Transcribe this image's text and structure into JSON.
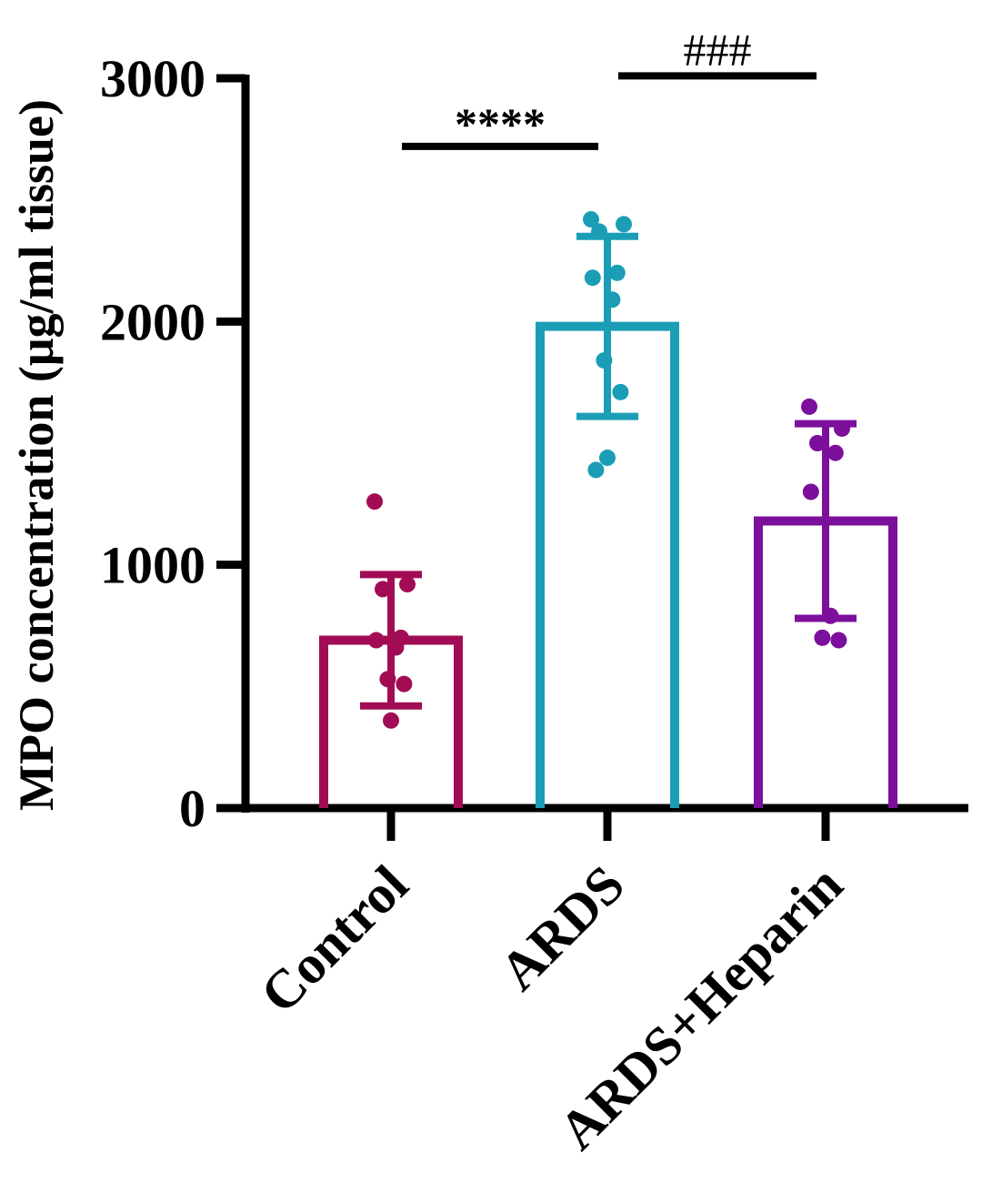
{
  "chart_data": {
    "type": "bar",
    "title": "",
    "xlabel": "",
    "ylabel": "MPO concentration (μg/ml tissue)",
    "ylim": [
      0,
      3000
    ],
    "yticks": [
      "0",
      "1000",
      "2000",
      "3000"
    ],
    "ytick_values": [
      0,
      1000,
      2000,
      3000
    ],
    "categories": [
      "Control",
      "ARDS",
      "ARDS+Heparin"
    ],
    "values": [
      690,
      1980,
      1180
    ],
    "sd": [
      270,
      370,
      400
    ],
    "colors": [
      "#a10c55",
      "#1b9eb5",
      "#7c0f9c"
    ],
    "points": [
      [
        1260,
        920,
        900,
        700,
        690,
        660,
        530,
        510,
        360
      ],
      [
        2420,
        2400,
        2370,
        2200,
        2180,
        2090,
        1840,
        1710,
        1440,
        1390
      ],
      [
        1650,
        1560,
        1500,
        1460,
        1300,
        790,
        700,
        690
      ]
    ],
    "significance": [
      {
        "label": "****",
        "from": "Control",
        "to": "ARDS",
        "y": 2720
      },
      {
        "label": "###",
        "from": "ARDS",
        "to": "ARDS+Heparin",
        "y": 3010
      }
    ]
  }
}
